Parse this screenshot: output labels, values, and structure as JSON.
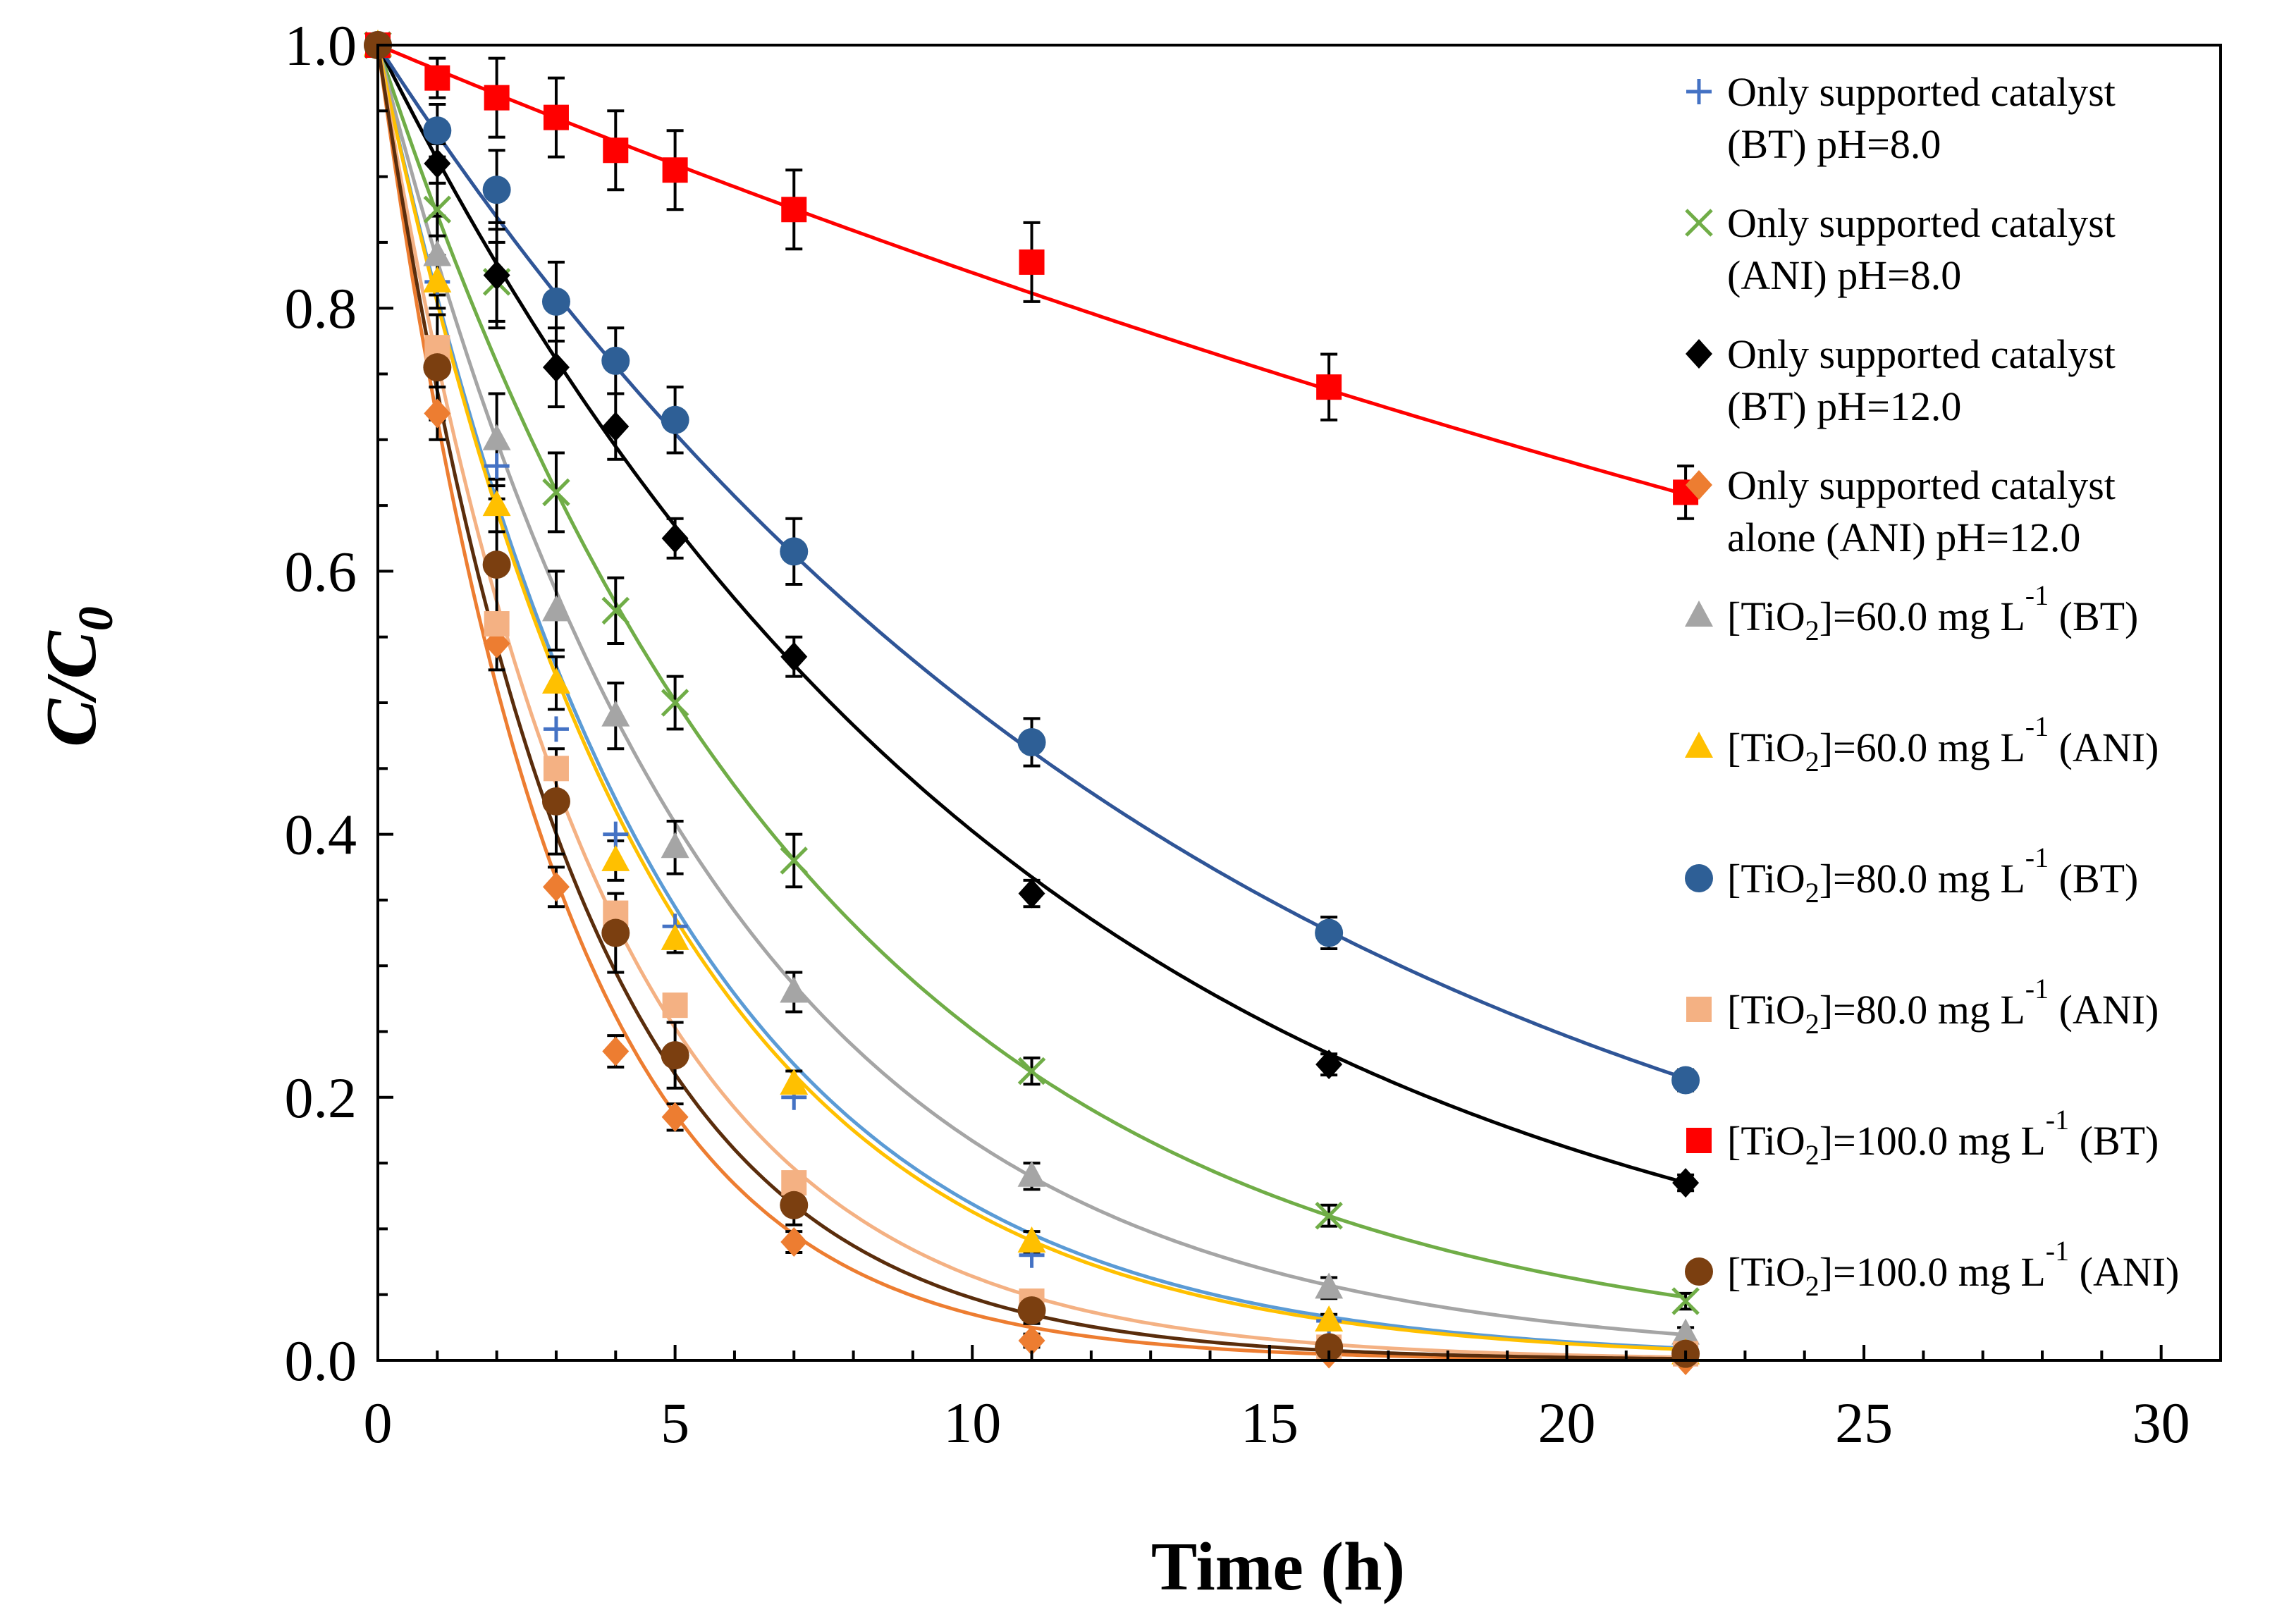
{
  "chart_data": {
    "type": "scatter",
    "title": "",
    "xlabel": "Time (h)",
    "ylabel": "C/C0",
    "ylabel_parts": {
      "main": "C/C",
      "sub": "0"
    },
    "xlim": [
      0,
      31
    ],
    "ylim": [
      0,
      1.0
    ],
    "xticks": [
      "0",
      "5",
      "10",
      "15",
      "20",
      "25",
      "30"
    ],
    "yticks": [
      "0.0",
      "0.2",
      "0.4",
      "0.6",
      "0.8",
      "1.0"
    ],
    "legend_position": "right",
    "x": [
      0,
      1,
      2,
      3,
      4,
      5,
      7,
      11,
      16,
      22
    ],
    "series": [
      {
        "name": "Only supported catalyst (BT) pH=8.0",
        "legend_lines": [
          [
            "Only supported catalyst"
          ],
          [
            "(BT) pH=8.0"
          ]
        ],
        "marker": "plus",
        "color": "#4472c4",
        "line_color": "#5b9bd5",
        "k": 0.213,
        "values": [
          1.0,
          0.82,
          0.68,
          0.48,
          0.4,
          0.33,
          0.2,
          0.08,
          0.03,
          0.01
        ],
        "errors": null
      },
      {
        "name": "Only supported catalyst (ANI) pH=8.0",
        "legend_lines": [
          [
            "Only supported catalyst"
          ],
          [
            "(ANI) pH=8.0"
          ]
        ],
        "marker": "x",
        "color": "#70ad47",
        "line_color": "#70ad47",
        "k": 0.138,
        "values": [
          1.0,
          0.875,
          0.82,
          0.66,
          0.57,
          0.5,
          0.38,
          0.22,
          0.11,
          0.045
        ],
        "errors": [
          0,
          0.02,
          0.03,
          0.03,
          0.025,
          0.02,
          0.02,
          0.01,
          0.008,
          0.006
        ]
      },
      {
        "name": "Only supported catalyst (BT) pH=12.0",
        "legend_lines": [
          [
            "Only supported catalyst"
          ],
          [
            "(BT) pH=12.0"
          ]
        ],
        "marker": "diamond",
        "color": "#000000",
        "line_color": "#000000",
        "k": 0.091,
        "values": [
          1.0,
          0.91,
          0.825,
          0.755,
          0.71,
          0.625,
          0.535,
          0.355,
          0.225,
          0.135
        ],
        "errors": [
          0,
          0.015,
          0.04,
          0.03,
          0.025,
          0.015,
          0.015,
          0.01,
          0.008,
          0.006
        ]
      },
      {
        "name": "Only supported catalyst alone (ANI) pH=12.0",
        "legend_lines": [
          [
            "Only supported catalyst"
          ],
          [
            "alone (ANI) pH=12.0"
          ]
        ],
        "marker": "diamond",
        "color": "#ed7d31",
        "line_color": "#ed7d31",
        "k": 0.335,
        "values": [
          1.0,
          0.72,
          0.545,
          0.36,
          0.235,
          0.185,
          0.09,
          0.015,
          0.005,
          0.0
        ],
        "errors": [
          0,
          0.02,
          0.02,
          0.015,
          0.012,
          0.01,
          0.008,
          0.005,
          0.003,
          0.002
        ]
      },
      {
        "name": "[TiO2]=60.0 mg L-1 (BT)",
        "legend_lines": [
          [
            "[TiO"
          ],
          [
            "2",
            "sub"
          ],
          [
            "]=60.0 mg L"
          ],
          [
            "-1",
            "sup"
          ],
          [
            " (BT)"
          ]
        ],
        "marker": "triangle",
        "color": "#a5a5a5",
        "line_color": "#a5a5a5",
        "k": 0.179,
        "values": [
          1.0,
          0.84,
          0.7,
          0.57,
          0.49,
          0.39,
          0.28,
          0.14,
          0.055,
          0.02
        ],
        "errors": [
          0,
          0.03,
          0.035,
          0.03,
          0.025,
          0.02,
          0.015,
          0.01,
          0.008,
          0.005
        ]
      },
      {
        "name": "[TiO2]=60.0 mg L-1 (ANI)",
        "legend_lines": [
          [
            "[TiO"
          ],
          [
            "2",
            "sub"
          ],
          [
            "]=60.0 mg L"
          ],
          [
            "-1",
            "sup"
          ],
          [
            " (ANI)"
          ]
        ],
        "marker": "triangle",
        "color": "#ffc000",
        "line_color": "#ffc000",
        "k": 0.218,
        "values": [
          1.0,
          0.82,
          0.65,
          0.515,
          0.38,
          0.32,
          0.21,
          0.09,
          0.03,
          0.005
        ],
        "errors": [
          0,
          0.02,
          0.02,
          0.02,
          0.015,
          0.01,
          0.01,
          0.008,
          0.005,
          0.003
        ]
      },
      {
        "name": "[TiO2]=80.0 mg L-1 (BT)",
        "legend_lines": [
          [
            "[TiO"
          ],
          [
            "2",
            "sub"
          ],
          [
            "]=80.0 mg L"
          ],
          [
            "-1",
            "sup"
          ],
          [
            " (BT)"
          ]
        ],
        "marker": "circle",
        "color": "#2e5f96",
        "line_color": "#2f5597",
        "k": 0.07,
        "values": [
          1.0,
          0.935,
          0.89,
          0.805,
          0.76,
          0.715,
          0.615,
          0.47,
          0.325,
          0.213
        ],
        "errors": [
          0,
          0.02,
          0.03,
          0.03,
          0.025,
          0.025,
          0.025,
          0.018,
          0.012,
          0.008
        ]
      },
      {
        "name": "[TiO2]=80.0 mg L-1 (ANI)",
        "legend_lines": [
          [
            "[TiO"
          ],
          [
            "2",
            "sub"
          ],
          [
            "]=80.0 mg L"
          ],
          [
            "-1",
            "sup"
          ],
          [
            " (ANI)"
          ]
        ],
        "marker": "square",
        "color": "#f4b183",
        "line_color": "#f4b183",
        "k": 0.275,
        "values": [
          1.0,
          0.77,
          0.56,
          0.45,
          0.34,
          0.27,
          0.135,
          0.045,
          0.01,
          0.005
        ],
        "errors": null
      },
      {
        "name": "[TiO2]=100.0 mg L-1 (BT)",
        "legend_lines": [
          [
            "[TiO"
          ],
          [
            "2",
            "sub"
          ],
          [
            "]=100.0 mg L"
          ],
          [
            "-1",
            "sup"
          ],
          [
            " (BT)"
          ]
        ],
        "marker": "square",
        "color": "#ff0000",
        "line_color": "#ff0000",
        "k": 0.019,
        "values": [
          1.0,
          0.975,
          0.96,
          0.945,
          0.92,
          0.905,
          0.875,
          0.835,
          0.74,
          0.66
        ],
        "errors": [
          0,
          0.015,
          0.03,
          0.03,
          0.03,
          0.03,
          0.03,
          0.03,
          0.025,
          0.02
        ]
      },
      {
        "name": "[TiO2]=100.0 mg L-1 (ANI)",
        "legend_lines": [
          [
            "[TiO"
          ],
          [
            "2",
            "sub"
          ],
          [
            "]=100.0 mg L"
          ],
          [
            "-1",
            "sup"
          ],
          [
            " (ANI)"
          ]
        ],
        "marker": "circle",
        "color": "#7b3f10",
        "line_color": "#5a2d0c",
        "k": 0.305,
        "values": [
          1.0,
          0.755,
          0.605,
          0.425,
          0.325,
          0.232,
          0.118,
          0.038,
          0.01,
          0.005
        ],
        "errors": [
          0,
          0.04,
          0.05,
          0.04,
          0.03,
          0.025,
          0.015,
          0.01,
          0.008,
          0.005
        ]
      }
    ]
  }
}
